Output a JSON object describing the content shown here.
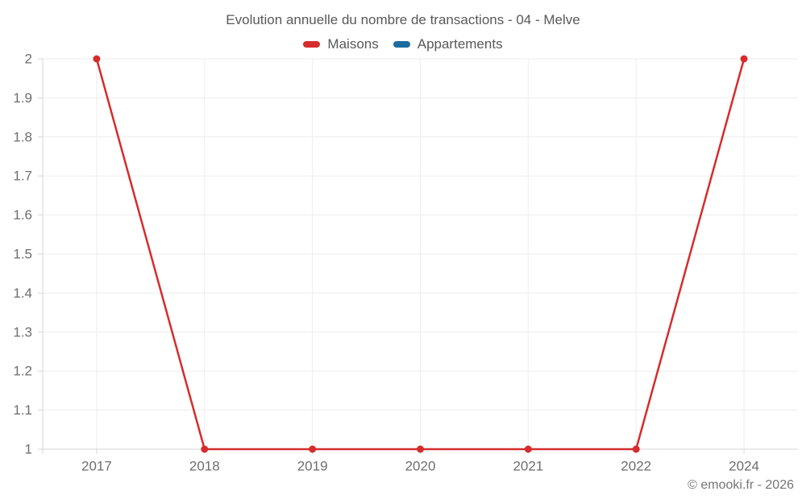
{
  "chart_data": {
    "type": "line",
    "title": "Evolution annuelle du nombre de transactions - 04 - Melve",
    "categories": [
      "2017",
      "2018",
      "2019",
      "2020",
      "2021",
      "2022",
      "2024"
    ],
    "series": [
      {
        "name": "Maisons",
        "color": "#d62c2c",
        "values": [
          2,
          1,
          1,
          1,
          1,
          1,
          2
        ]
      },
      {
        "name": "Appartements",
        "color": "#1a6d9e",
        "values": []
      }
    ],
    "ylim": [
      1,
      2
    ],
    "yticks": [
      "1",
      "1.1",
      "1.2",
      "1.3",
      "1.4",
      "1.5",
      "1.6",
      "1.7",
      "1.8",
      "1.9",
      "2"
    ],
    "grid": true,
    "legend_position": "top",
    "grid_color": "#ededed",
    "axis_color": "#d6d6d6",
    "label_color": "#6e6e6e"
  },
  "footer": {
    "credit": "© emooki.fr - 2026"
  }
}
